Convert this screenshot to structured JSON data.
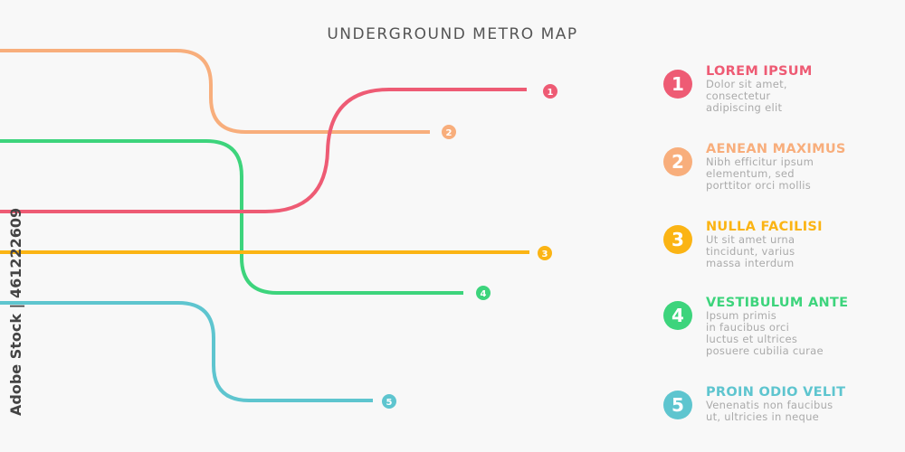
{
  "title": "UNDERGROUND METRO MAP",
  "watermark": "Adobe Stock | 461222609",
  "lines": [
    {
      "number": "1",
      "color": "#ee5b74",
      "heading": "LOREM IPSUM",
      "text": "Dolor sit amet,\nconsectetur\nadipiscing elit"
    },
    {
      "number": "2",
      "color": "#f8ae7c",
      "heading": "AENEAN MAXIMUS",
      "text": "Nibh efficitur ipsum\nelementum, sed\nporttitor orci mollis"
    },
    {
      "number": "3",
      "color": "#fbb414",
      "heading": "NULLA FACILISI",
      "text": "Ut sit amet urna\ntincidunt, varius\nmassa interdum"
    },
    {
      "number": "4",
      "color": "#3dd47c",
      "heading": "VESTIBULUM ANTE",
      "text": "Ipsum primis\nin faucibus orci\nluctus et ultrices\nposuere cubilia curae"
    },
    {
      "number": "5",
      "color": "#5ec5cf",
      "heading": "PROIN ODIO VELIT",
      "text": "Venenatis non faucibus\nut, ultricies in neque"
    }
  ]
}
